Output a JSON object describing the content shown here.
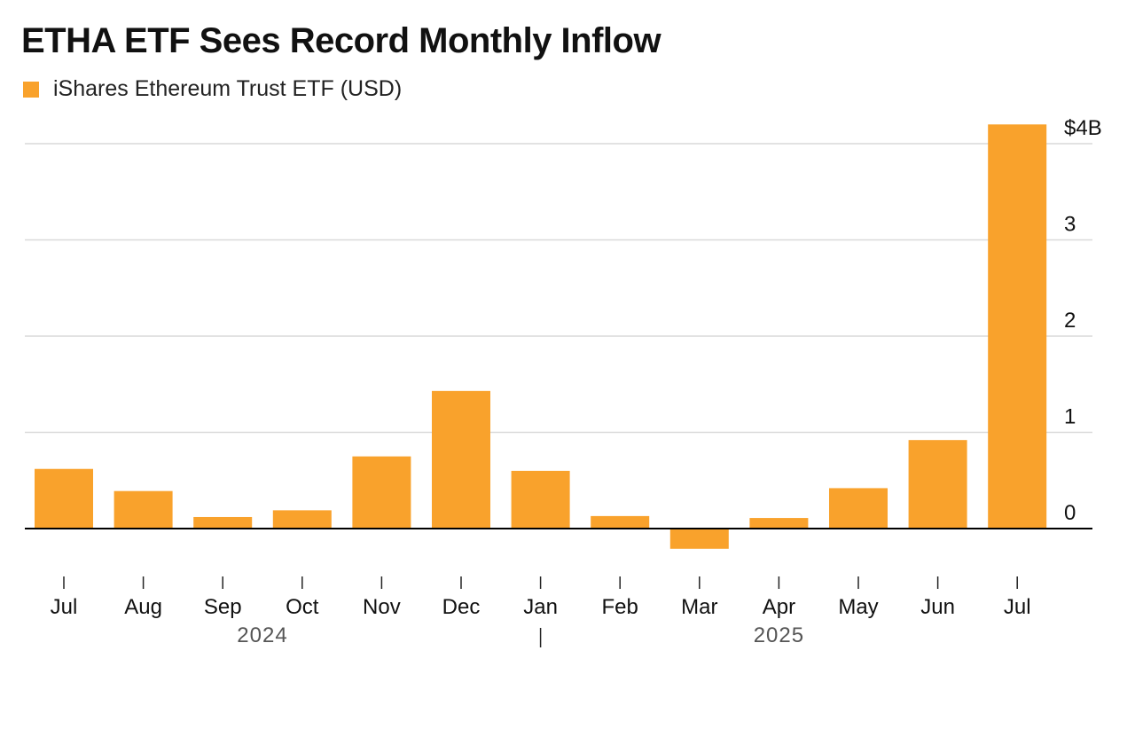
{
  "chart_data": {
    "type": "bar",
    "title": "ETHA ETF Sees Record Monthly Inflow",
    "legend": [
      {
        "name": "iShares Ethereum Trust ETF (USD)",
        "color": "#F9A22C"
      }
    ],
    "categories": [
      "Jul",
      "Aug",
      "Sep",
      "Oct",
      "Nov",
      "Dec",
      "Jan",
      "Feb",
      "Mar",
      "Apr",
      "May",
      "Jun",
      "Jul"
    ],
    "series": [
      {
        "name": "iShares Ethereum Trust ETF (USD)",
        "values": [
          0.62,
          0.39,
          0.12,
          0.19,
          0.75,
          1.43,
          0.6,
          0.13,
          -0.21,
          0.11,
          0.42,
          0.92,
          4.2
        ]
      }
    ],
    "year_labels": [
      {
        "label": "2024",
        "span": [
          0,
          5
        ]
      },
      {
        "label": "2025",
        "span": [
          6,
          12
        ]
      }
    ],
    "y_ticks": [
      {
        "value": 4,
        "label": "$4B"
      },
      {
        "value": 3,
        "label": "3"
      },
      {
        "value": 2,
        "label": "2"
      },
      {
        "value": 1,
        "label": "1"
      },
      {
        "value": 0,
        "label": "0"
      }
    ],
    "ylim": [
      -0.3,
      4.2
    ],
    "y_axis_position": "right",
    "grid": true,
    "legend_position": "top-left",
    "bar_color": "#F9A22C",
    "grid_color": "#D9D9D9",
    "axis_color": "#000000"
  }
}
